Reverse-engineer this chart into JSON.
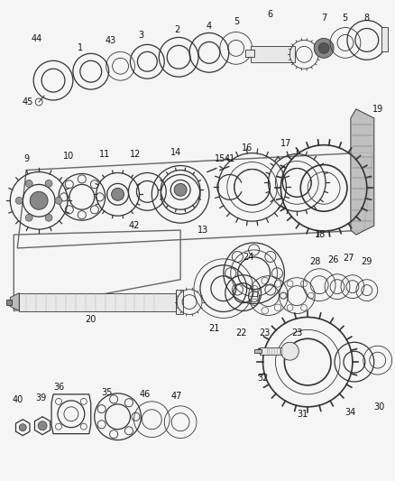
{
  "bg_color": "#f5f5f5",
  "line_color": "#333333",
  "fill_light": "#e8e8e8",
  "fill_mid": "#bbbbbb",
  "fill_dark": "#888888",
  "annotations": {
    "font_size": 7.0,
    "font_color": "#111111"
  }
}
